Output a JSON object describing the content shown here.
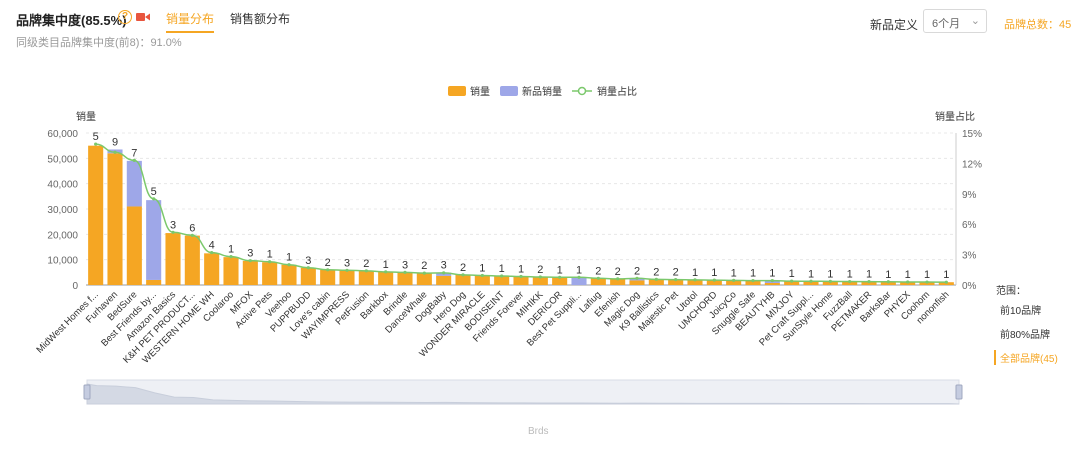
{
  "header": {
    "title": "品牌集中度(85.5%)",
    "tabs": [
      {
        "label": "销量分布",
        "active": true
      },
      {
        "label": "销售额分布",
        "active": false
      }
    ],
    "subtitle": "同级类目品牌集中度(前8)：91.0%",
    "new_product_def_label": "新品定义",
    "new_product_def_value": "6个月",
    "brand_total": "品牌总数：45"
  },
  "colors": {
    "sales": "#f5a623",
    "new_sales": "#9ea7e8",
    "ratio": "#7bc86c",
    "accent": "#f5a623"
  },
  "chart_data": {
    "type": "bar",
    "legend": [
      "销量",
      "新品销量",
      "销量占比"
    ],
    "ylabel": "销量",
    "ylabel_right": "销量占比",
    "ylim": [
      0,
      60000
    ],
    "yticks": [
      "0",
      "10,000",
      "20,000",
      "30,000",
      "40,000",
      "50,000",
      "60,000"
    ],
    "ylim_right": [
      0,
      15
    ],
    "yticks_right": [
      "0%",
      "3%",
      "6%",
      "9%",
      "12%",
      "15%"
    ],
    "xlabel": "Brds",
    "categories": [
      "MidWest Homes f...",
      "Furhaven",
      "BedSure",
      "Best Friends by...",
      "Amazon Basics",
      "K&H PET PRODUCT...",
      "WESTERN HOME WH",
      "Coolaroo",
      "MFOX",
      "Active Pets",
      "Veehoo",
      "PUPPBUDD",
      "Love's cabin",
      "WAYIMPRESS",
      "PetFusion",
      "Barkbox",
      "Brindle",
      "DanceWhale",
      "DogBaby",
      "Hero Dog",
      "WONDER MIRACLE",
      "BODISEINT",
      "Friends Forever",
      "MIHIKK",
      "DERICOR",
      "Best Pet Suppli...",
      "Lafiug",
      "Efenish",
      "Magic Dog",
      "K9 Ballistics",
      "Majestic Pet",
      "Utotol",
      "UMCHORD",
      "JoicyCo",
      "Snuggle Safe",
      "BEAUTYHB",
      "MIXJOY",
      "Pet Craft Suppl...",
      "SunStyle Home",
      "FuzzBall",
      "PETMAKER",
      "BarksBar",
      "PHYEX",
      "Coohom",
      "nononfish"
    ],
    "series": [
      {
        "name": "销量",
        "values": [
          55000,
          52000,
          31000,
          2000,
          20500,
          19500,
          12500,
          11000,
          9500,
          9000,
          8000,
          6800,
          6000,
          5700,
          5500,
          5200,
          4900,
          4600,
          3600,
          4000,
          3700,
          3500,
          3300,
          3100,
          3000,
          0,
          2600,
          2400,
          1800,
          2200,
          2100,
          2000,
          1900,
          1800,
          1700,
          800,
          1500,
          1450,
          1400,
          1350,
          1300,
          1250,
          1200,
          1150,
          1100
        ]
      },
      {
        "name": "新品销量",
        "values": [
          0,
          1500,
          18000,
          31500,
          0,
          0,
          0,
          0,
          0,
          0,
          0,
          0,
          0,
          0,
          0,
          0,
          0,
          0,
          1300,
          0,
          0,
          0,
          0,
          0,
          0,
          3000,
          0,
          0,
          800,
          0,
          0,
          0,
          0,
          0,
          0,
          900,
          0,
          0,
          0,
          0,
          0,
          0,
          0,
          0,
          0
        ]
      },
      {
        "name": "销量占比",
        "values": [
          13.9,
          13.1,
          12.3,
          8.5,
          5.2,
          4.9,
          3.2,
          2.8,
          2.4,
          2.3,
          2.0,
          1.7,
          1.5,
          1.45,
          1.4,
          1.3,
          1.25,
          1.17,
          1.2,
          1.0,
          0.94,
          0.89,
          0.84,
          0.79,
          0.76,
          0.76,
          0.66,
          0.61,
          0.66,
          0.56,
          0.53,
          0.51,
          0.48,
          0.46,
          0.43,
          0.43,
          0.38,
          0.37,
          0.36,
          0.34,
          0.33,
          0.32,
          0.3,
          0.29,
          0.28
        ]
      }
    ],
    "data_labels": [
      "5",
      "9",
      "7",
      "5",
      "3",
      "6",
      "4",
      "1",
      "3",
      "1",
      "1",
      "3",
      "2",
      "3",
      "2",
      "1",
      "3",
      "2",
      "3",
      "2",
      "1",
      "1",
      "1",
      "2",
      "1",
      "1",
      "2",
      "2",
      "2",
      "2",
      "2",
      "1",
      "1",
      "1",
      "1",
      "1",
      "1",
      "1",
      "1",
      "1",
      "1",
      "1",
      "1",
      "1",
      "1"
    ],
    "grid": true
  },
  "range": {
    "title": "范围：",
    "items": [
      {
        "label": "前10品牌",
        "active": false
      },
      {
        "label": "前80%品牌",
        "active": false
      },
      {
        "label": "全部品牌(45)",
        "active": true
      }
    ]
  }
}
